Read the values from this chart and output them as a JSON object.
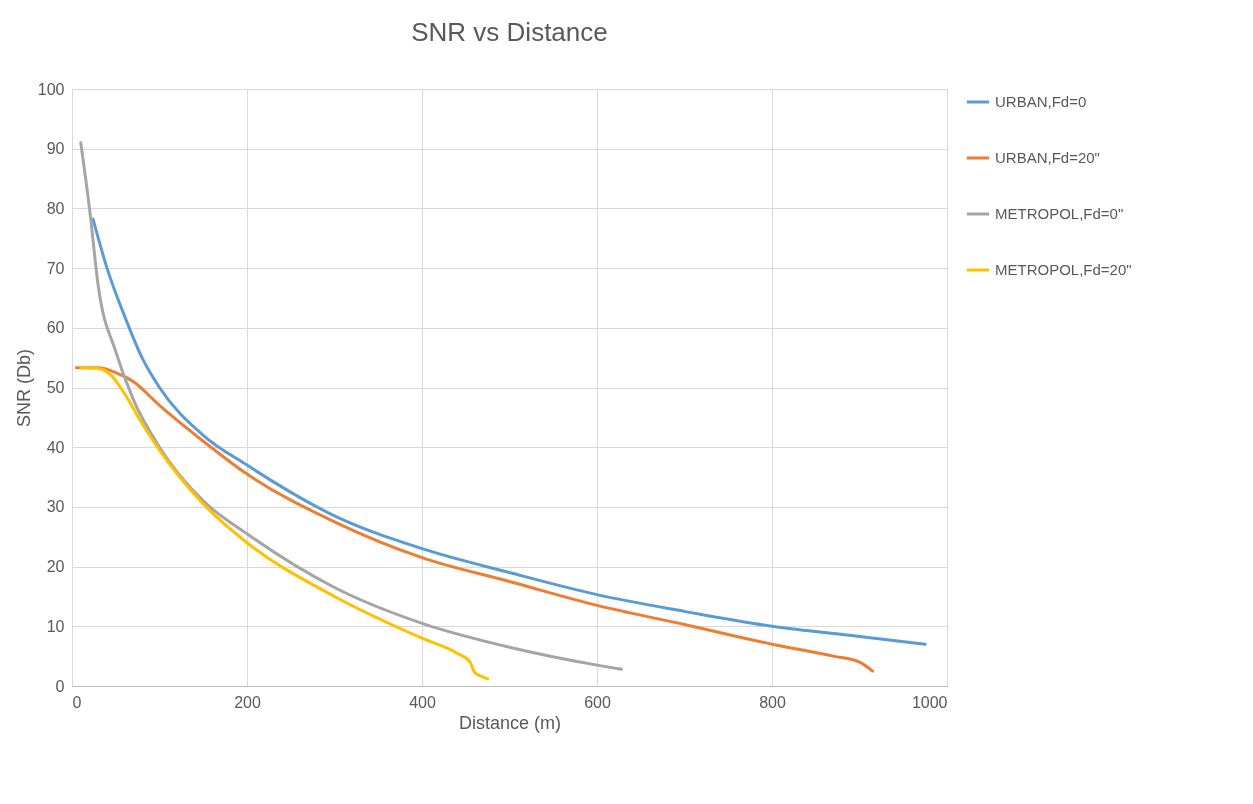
{
  "chart_data": {
    "type": "line",
    "title": "SNR vs Distance",
    "xlabel": "Distance (m)",
    "ylabel": "SNR (Db)",
    "xlim": [
      0,
      1000
    ],
    "xticks": [
      0,
      200,
      400,
      600,
      800,
      1000
    ],
    "ylim": [
      0,
      100
    ],
    "yticks": [
      0,
      10,
      20,
      30,
      40,
      50,
      60,
      70,
      80,
      90,
      100
    ],
    "grid": true,
    "legend": "right",
    "marker": "none",
    "line_style": "solid",
    "series": [
      {
        "name": "URBAN,Fd=0",
        "color": "#5b9bd5",
        "x": [
          24,
          40,
          60,
          80,
          100,
          150,
          200,
          300,
          400,
          500,
          600,
          700,
          800,
          900,
          975
        ],
        "values": [
          78.2,
          70,
          62,
          55,
          50,
          42,
          37,
          28.5,
          23,
          19,
          15.3,
          12.5,
          10,
          8.3,
          7
        ]
      },
      {
        "name": "URBAN,Fd=20\"",
        "color": "#ed7d31",
        "x": [
          5,
          30,
          50,
          70,
          100,
          150,
          200,
          300,
          400,
          500,
          600,
          700,
          800,
          870,
          900,
          915
        ],
        "values": [
          53.3,
          53.3,
          52.5,
          51,
          47,
          41,
          35.5,
          27.5,
          21.5,
          17.5,
          13.5,
          10.3,
          7,
          5,
          4,
          2.5
        ]
      },
      {
        "name": "METROPOL,Fd=0\"",
        "color": "#a5a5a5",
        "x": [
          10,
          20,
          30,
          50,
          70,
          100,
          150,
          200,
          300,
          400,
          500,
          600,
          628
        ],
        "values": [
          91,
          80,
          67,
          56,
          48,
          40,
          31,
          25.5,
          16.5,
          10.5,
          6.5,
          3.5,
          2.8
        ]
      },
      {
        "name": "METROPOL,Fd=20\"",
        "color": "#ffc000",
        "x": [
          10,
          30,
          45,
          60,
          80,
          100,
          150,
          200,
          300,
          400,
          440,
          455,
          460,
          470,
          475
        ],
        "values": [
          53.3,
          53.2,
          52,
          49,
          44,
          39.5,
          30.5,
          24,
          15,
          8,
          5.5,
          4,
          2.3,
          1.5,
          1.2
        ]
      }
    ]
  }
}
